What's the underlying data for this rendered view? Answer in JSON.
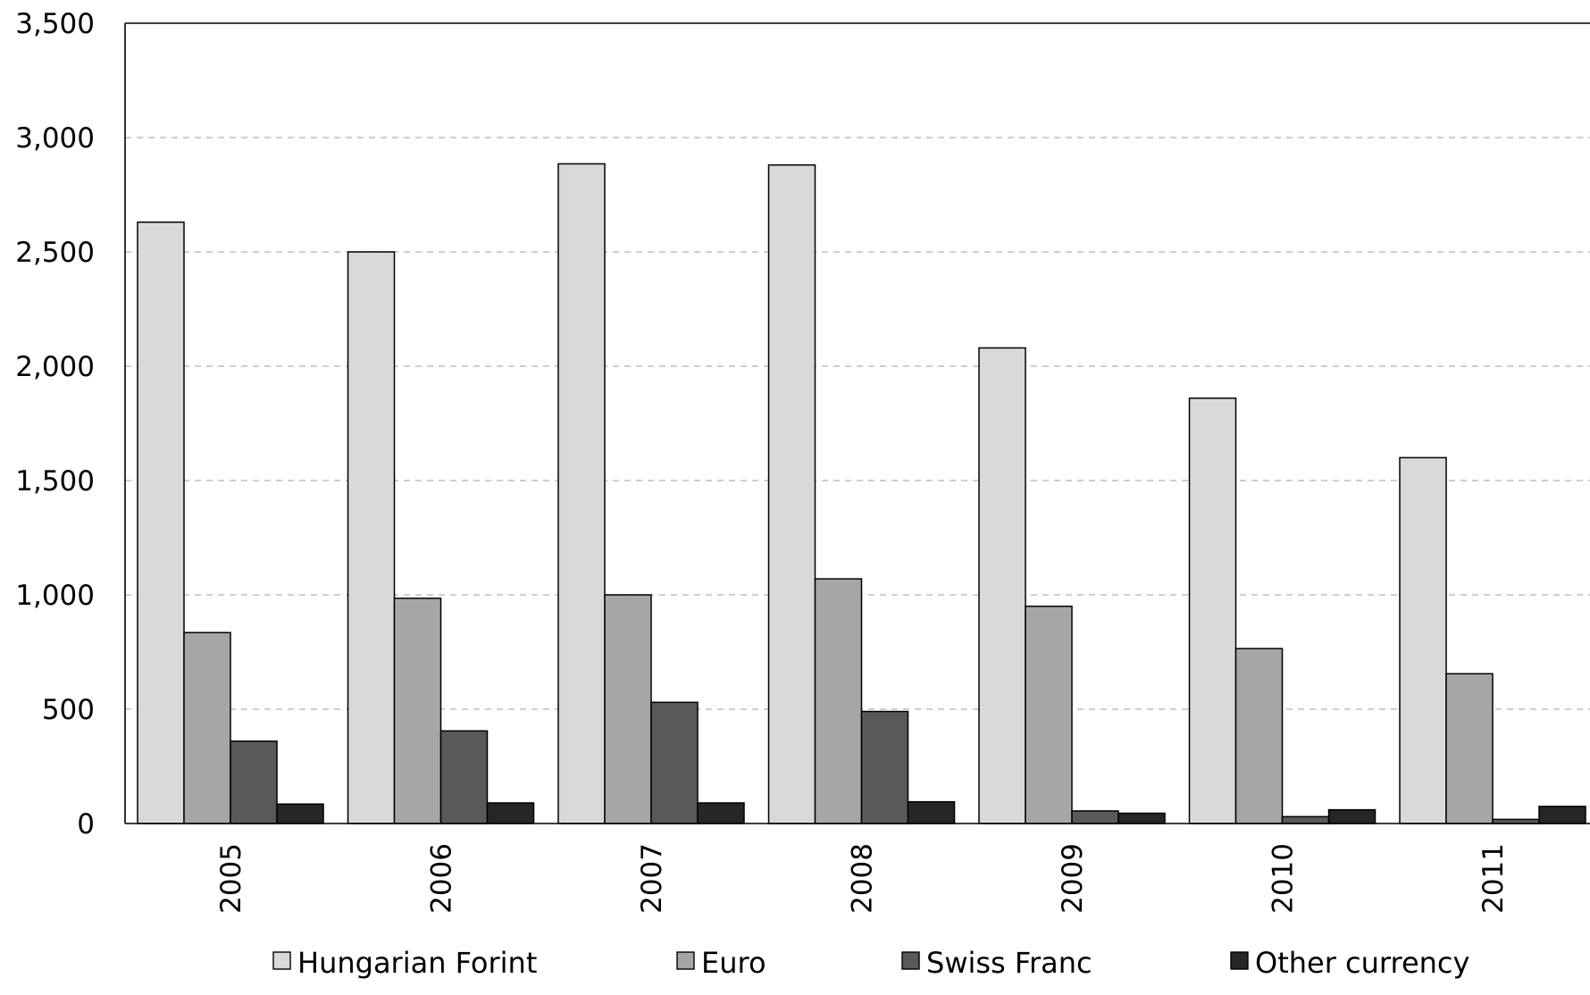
{
  "chart_data": {
    "type": "bar",
    "title": "",
    "xlabel": "",
    "ylabel": "",
    "categories": [
      "2005",
      "2006",
      "2007",
      "2008",
      "2009",
      "2010",
      "2011"
    ],
    "series": [
      {
        "name": "Hungarian Forint",
        "color": "#d9d9d9",
        "values": [
          2630,
          2500,
          2885,
          2880,
          2080,
          1860,
          1600
        ]
      },
      {
        "name": "Euro",
        "color": "#a6a6a6",
        "values": [
          835,
          985,
          1000,
          1070,
          950,
          765,
          655
        ]
      },
      {
        "name": "Swiss Franc",
        "color": "#595959",
        "values": [
          360,
          405,
          530,
          490,
          55,
          30,
          18
        ]
      },
      {
        "name": "Other currency",
        "color": "#262626",
        "values": [
          85,
          90,
          90,
          95,
          45,
          60,
          75
        ]
      }
    ],
    "ylim": [
      0,
      3500
    ],
    "yticks": [
      0,
      500,
      1000,
      1500,
      2000,
      2500,
      3000,
      3500
    ],
    "ytick_labels": [
      "0",
      "500",
      "1,000",
      "1,500",
      "2,000",
      "2,500",
      "3,000",
      "3,500"
    ],
    "grid": true,
    "grid_style": "dashed",
    "legend_position": "bottom"
  }
}
